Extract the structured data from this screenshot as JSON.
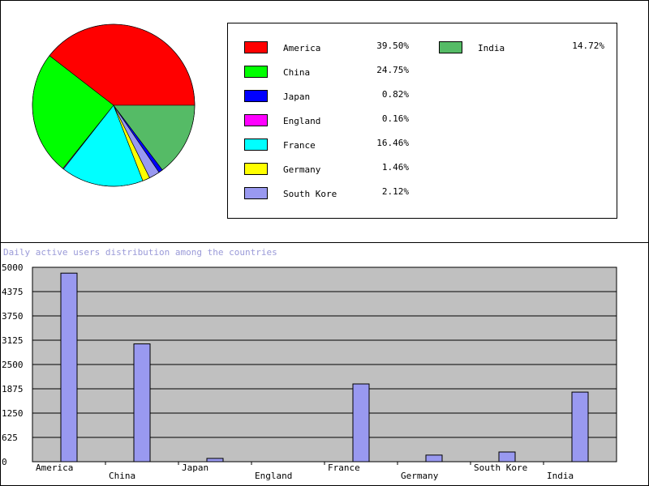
{
  "chart_data": [
    {
      "type": "pie",
      "categories": [
        "America",
        "China",
        "Japan",
        "England",
        "France",
        "Germany",
        "South Kore",
        "India"
      ],
      "values": [
        39.5,
        24.75,
        0.82,
        0.16,
        16.46,
        1.46,
        2.12,
        14.72
      ],
      "labels": [
        "39.50%",
        "24.75%",
        "0.82%",
        "0.16%",
        "16.46%",
        "1.46%",
        "2.12%",
        "14.72%"
      ],
      "colors": [
        "#ff0000",
        "#00ff00",
        "#0000ff",
        "#ff00ff",
        "#00ffff",
        "#ffff00",
        "#9999f0",
        "#55bb66"
      ],
      "legend": "right"
    },
    {
      "type": "bar",
      "title": "Daily active users distribution among the countries",
      "categories": [
        "America",
        "China",
        "Japan",
        "England",
        "France",
        "Germany",
        "South Kore",
        "India"
      ],
      "values": [
        4850,
        3030,
        85,
        0,
        2000,
        170,
        250,
        1790
      ],
      "ylim": [
        0,
        5000
      ],
      "yticks": [
        "0",
        "625",
        "1250",
        "1875",
        "2500",
        "3125",
        "3750",
        "4375",
        "5000"
      ],
      "grid": true,
      "bar_color": "#9999f0",
      "plot_background": "#c0c0c0"
    }
  ]
}
